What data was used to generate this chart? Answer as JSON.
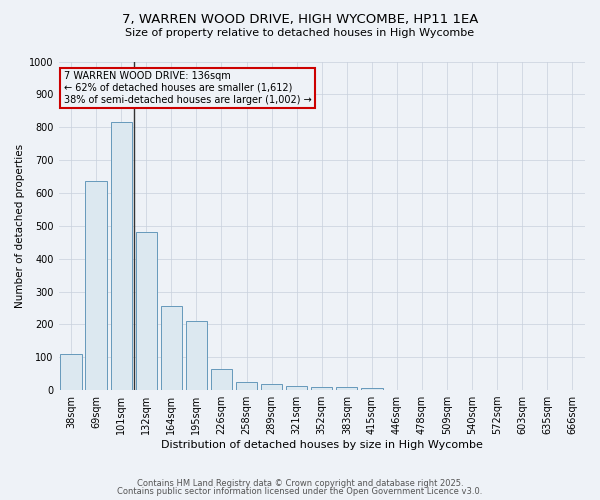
{
  "title1": "7, WARREN WOOD DRIVE, HIGH WYCOMBE, HP11 1EA",
  "title2": "Size of property relative to detached houses in High Wycombe",
  "xlabel": "Distribution of detached houses by size in High Wycombe",
  "ylabel": "Number of detached properties",
  "bar_color": "#dce8f0",
  "bar_edge_color": "#6699bb",
  "categories": [
    "38sqm",
    "69sqm",
    "101sqm",
    "132sqm",
    "164sqm",
    "195sqm",
    "226sqm",
    "258sqm",
    "289sqm",
    "321sqm",
    "352sqm",
    "383sqm",
    "415sqm",
    "446sqm",
    "478sqm",
    "509sqm",
    "540sqm",
    "572sqm",
    "603sqm",
    "635sqm",
    "666sqm"
  ],
  "values": [
    110,
    635,
    815,
    480,
    255,
    210,
    65,
    25,
    18,
    12,
    10,
    10,
    5,
    0,
    0,
    0,
    0,
    0,
    0,
    0,
    0
  ],
  "ylim": [
    0,
    1000
  ],
  "yticks": [
    0,
    100,
    200,
    300,
    400,
    500,
    600,
    700,
    800,
    900,
    1000
  ],
  "annotation_title": "7 WARREN WOOD DRIVE: 136sqm",
  "annotation_line1": "← 62% of detached houses are smaller (1,612)",
  "annotation_line2": "38% of semi-detached houses are larger (1,002) →",
  "annotation_color": "#cc0000",
  "vline_color": "#333333",
  "bg_color": "#eef2f7",
  "plot_bg_color": "#eef2f7",
  "grid_color": "#c8d0dc",
  "footer1": "Contains HM Land Registry data © Crown copyright and database right 2025.",
  "footer2": "Contains public sector information licensed under the Open Government Licence v3.0.",
  "title1_fontsize": 9.5,
  "title2_fontsize": 8,
  "ylabel_fontsize": 7.5,
  "xlabel_fontsize": 8,
  "tick_fontsize": 7,
  "annotation_fontsize": 7,
  "footer_fontsize": 6
}
